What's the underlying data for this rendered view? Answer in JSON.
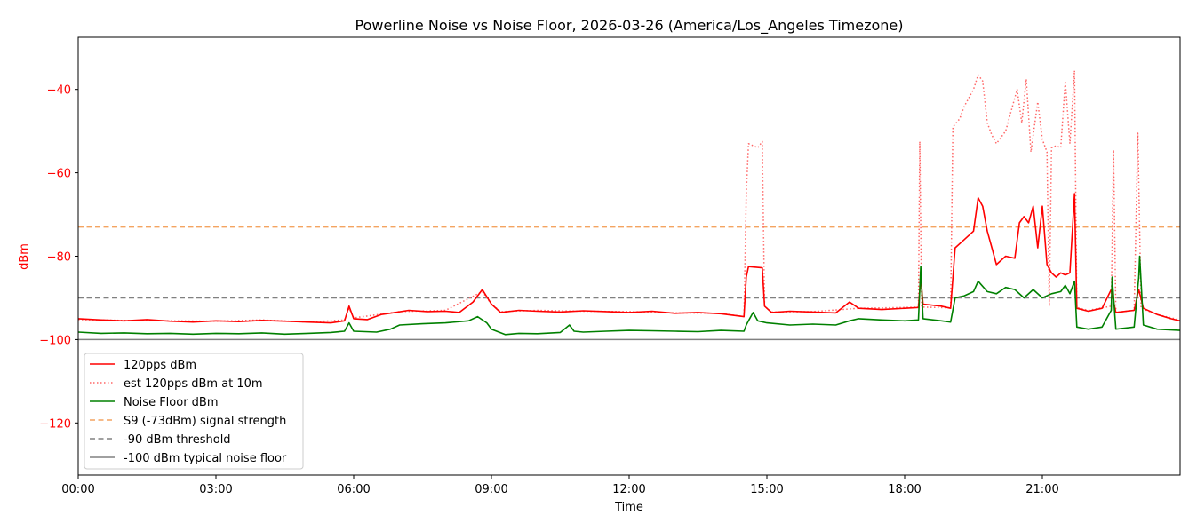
{
  "chart_data": {
    "type": "line",
    "title": "Powerline Noise vs Noise Floor, 2026-03-26 (America/Los_Angeles Timezone)",
    "xlabel": "Time",
    "ylabel": "dBm",
    "xlim_hours": [
      0,
      24
    ],
    "ylim": [
      -132.5,
      -27.5
    ],
    "x_ticks": [
      {
        "h": 0,
        "label": "00:00"
      },
      {
        "h": 3,
        "label": "03:00"
      },
      {
        "h": 6,
        "label": "06:00"
      },
      {
        "h": 9,
        "label": "09:00"
      },
      {
        "h": 12,
        "label": "12:00"
      },
      {
        "h": 15,
        "label": "15:00"
      },
      {
        "h": 18,
        "label": "18:00"
      },
      {
        "h": 21,
        "label": "21:00"
      }
    ],
    "y_ticks": [
      {
        "v": -40,
        "label": "−40"
      },
      {
        "v": -60,
        "label": "−60"
      },
      {
        "v": -80,
        "label": "−80"
      },
      {
        "v": -100,
        "label": "−100"
      },
      {
        "v": -120,
        "label": "−120"
      }
    ],
    "grid": false,
    "legend_position": "lower-left",
    "ylabel_color": "#ff0000",
    "series": [
      {
        "name": "120pps dBm",
        "color": "#ff0000",
        "style": "solid",
        "points": [
          [
            0,
            -95
          ],
          [
            0.5,
            -95.3
          ],
          [
            1,
            -95.5
          ],
          [
            1.5,
            -95.2
          ],
          [
            2,
            -95.6
          ],
          [
            2.5,
            -95.8
          ],
          [
            3,
            -95.5
          ],
          [
            3.5,
            -95.7
          ],
          [
            4,
            -95.4
          ],
          [
            4.5,
            -95.6
          ],
          [
            5,
            -95.8
          ],
          [
            5.5,
            -96
          ],
          [
            5.8,
            -95.5
          ],
          [
            5.9,
            -92
          ],
          [
            6,
            -95
          ],
          [
            6.3,
            -95.2
          ],
          [
            6.6,
            -94
          ],
          [
            6.9,
            -93.5
          ],
          [
            7.2,
            -93
          ],
          [
            7.6,
            -93.3
          ],
          [
            8,
            -93.2
          ],
          [
            8.3,
            -93.5
          ],
          [
            8.6,
            -91
          ],
          [
            8.8,
            -88
          ],
          [
            9,
            -91.5
          ],
          [
            9.2,
            -93.5
          ],
          [
            9.6,
            -93
          ],
          [
            10,
            -93.2
          ],
          [
            10.5,
            -93.4
          ],
          [
            11,
            -93.1
          ],
          [
            11.5,
            -93.3
          ],
          [
            12,
            -93.5
          ],
          [
            12.5,
            -93.2
          ],
          [
            13,
            -93.7
          ],
          [
            13.5,
            -93.5
          ],
          [
            14,
            -93.8
          ],
          [
            14.5,
            -94.5
          ],
          [
            14.55,
            -85
          ],
          [
            14.6,
            -82.5
          ],
          [
            14.9,
            -82.8
          ],
          [
            14.95,
            -92
          ],
          [
            15.1,
            -93.5
          ],
          [
            15.5,
            -93.2
          ],
          [
            16,
            -93.4
          ],
          [
            16.5,
            -93.6
          ],
          [
            16.8,
            -91
          ],
          [
            17,
            -92.5
          ],
          [
            17.5,
            -92.8
          ],
          [
            18,
            -92.5
          ],
          [
            18.3,
            -92.3
          ],
          [
            18.35,
            -85
          ],
          [
            18.4,
            -91.5
          ],
          [
            18.8,
            -92
          ],
          [
            19,
            -92.5
          ],
          [
            19.1,
            -78
          ],
          [
            19.3,
            -76
          ],
          [
            19.5,
            -74
          ],
          [
            19.6,
            -66
          ],
          [
            19.7,
            -68
          ],
          [
            19.8,
            -74
          ],
          [
            19.9,
            -78
          ],
          [
            20,
            -82
          ],
          [
            20.2,
            -80
          ],
          [
            20.4,
            -80.5
          ],
          [
            20.5,
            -72
          ],
          [
            20.6,
            -70.5
          ],
          [
            20.7,
            -72
          ],
          [
            20.8,
            -68
          ],
          [
            20.9,
            -78
          ],
          [
            21,
            -68
          ],
          [
            21.1,
            -82
          ],
          [
            21.2,
            -84
          ],
          [
            21.3,
            -85
          ],
          [
            21.4,
            -84
          ],
          [
            21.5,
            -84.5
          ],
          [
            21.6,
            -84
          ],
          [
            21.7,
            -65
          ],
          [
            21.75,
            -92.5
          ],
          [
            22,
            -93.2
          ],
          [
            22.3,
            -92.5
          ],
          [
            22.5,
            -88
          ],
          [
            22.6,
            -93.5
          ],
          [
            23,
            -93
          ],
          [
            23.1,
            -88
          ],
          [
            23.2,
            -92.5
          ],
          [
            23.5,
            -94
          ],
          [
            23.8,
            -95
          ],
          [
            24,
            -95.5
          ]
        ]
      },
      {
        "name": "est 120pps dBm at 10m",
        "color": "#ff6666",
        "style": "dotted",
        "points": [
          [
            0,
            -95.2
          ],
          [
            1,
            -95.4
          ],
          [
            2,
            -95.5
          ],
          [
            3,
            -95.6
          ],
          [
            4,
            -95.3
          ],
          [
            5,
            -95.8
          ],
          [
            5.8,
            -95.3
          ],
          [
            5.9,
            -92.5
          ],
          [
            6,
            -94.8
          ],
          [
            7,
            -93.3
          ],
          [
            8,
            -93
          ],
          [
            8.8,
            -88.5
          ],
          [
            9,
            -91.5
          ],
          [
            9.2,
            -93.3
          ],
          [
            10,
            -93
          ],
          [
            11,
            -93.2
          ],
          [
            12,
            -93.3
          ],
          [
            13,
            -93.6
          ],
          [
            14,
            -93.7
          ],
          [
            14.5,
            -94.5
          ],
          [
            14.55,
            -65
          ],
          [
            14.6,
            -53
          ],
          [
            14.8,
            -54
          ],
          [
            14.9,
            -52.5
          ],
          [
            14.95,
            -92
          ],
          [
            15.1,
            -93.4
          ],
          [
            16,
            -93.3
          ],
          [
            17,
            -92.5
          ],
          [
            18,
            -92.3
          ],
          [
            18.3,
            -92.2
          ],
          [
            18.33,
            -52.5
          ],
          [
            18.37,
            -92.2
          ],
          [
            19,
            -92.4
          ],
          [
            19.05,
            -49
          ],
          [
            19.2,
            -47
          ],
          [
            19.3,
            -44
          ],
          [
            19.5,
            -40
          ],
          [
            19.6,
            -36.5
          ],
          [
            19.7,
            -38
          ],
          [
            19.8,
            -48
          ],
          [
            19.9,
            -51
          ],
          [
            20,
            -53
          ],
          [
            20.2,
            -50
          ],
          [
            20.35,
            -44
          ],
          [
            20.45,
            -40
          ],
          [
            20.55,
            -48
          ],
          [
            20.65,
            -37.5
          ],
          [
            20.75,
            -55
          ],
          [
            20.9,
            -43
          ],
          [
            21,
            -52
          ],
          [
            21.1,
            -55
          ],
          [
            21.15,
            -92
          ],
          [
            21.2,
            -54
          ],
          [
            21.3,
            -53.5
          ],
          [
            21.4,
            -54
          ],
          [
            21.5,
            -38
          ],
          [
            21.6,
            -53
          ],
          [
            21.7,
            -35.5
          ],
          [
            21.75,
            -92.3
          ],
          [
            22,
            -93
          ],
          [
            22.5,
            -92
          ],
          [
            22.55,
            -54.5
          ],
          [
            22.6,
            -93.5
          ],
          [
            23,
            -93
          ],
          [
            23.08,
            -50.5
          ],
          [
            23.15,
            -92.5
          ],
          [
            23.5,
            -94
          ],
          [
            24,
            -95.3
          ]
        ]
      },
      {
        "name": "Noise Floor dBm",
        "color": "#008000",
        "style": "solid",
        "points": [
          [
            0,
            -98.2
          ],
          [
            0.5,
            -98.5
          ],
          [
            1,
            -98.4
          ],
          [
            1.5,
            -98.6
          ],
          [
            2,
            -98.5
          ],
          [
            2.5,
            -98.7
          ],
          [
            3,
            -98.5
          ],
          [
            3.5,
            -98.6
          ],
          [
            4,
            -98.4
          ],
          [
            4.5,
            -98.7
          ],
          [
            5,
            -98.5
          ],
          [
            5.5,
            -98.3
          ],
          [
            5.8,
            -98
          ],
          [
            5.9,
            -96
          ],
          [
            6,
            -98
          ],
          [
            6.5,
            -98.2
          ],
          [
            6.8,
            -97.5
          ],
          [
            7,
            -96.5
          ],
          [
            7.5,
            -96.2
          ],
          [
            8,
            -96
          ],
          [
            8.5,
            -95.5
          ],
          [
            8.7,
            -94.5
          ],
          [
            8.9,
            -96
          ],
          [
            9,
            -97.5
          ],
          [
            9.3,
            -98.8
          ],
          [
            9.6,
            -98.5
          ],
          [
            10,
            -98.6
          ],
          [
            10.5,
            -98.3
          ],
          [
            10.7,
            -96.5
          ],
          [
            10.8,
            -98
          ],
          [
            11,
            -98.2
          ],
          [
            11.5,
            -98
          ],
          [
            12,
            -97.8
          ],
          [
            12.5,
            -97.9
          ],
          [
            13,
            -98
          ],
          [
            13.5,
            -98.1
          ],
          [
            14,
            -97.8
          ],
          [
            14.5,
            -98
          ],
          [
            14.55,
            -96.5
          ],
          [
            14.6,
            -95.5
          ],
          [
            14.7,
            -93.5
          ],
          [
            14.8,
            -95.5
          ],
          [
            15,
            -96
          ],
          [
            15.5,
            -96.5
          ],
          [
            16,
            -96.3
          ],
          [
            16.5,
            -96.5
          ],
          [
            16.8,
            -95.5
          ],
          [
            17,
            -95
          ],
          [
            17.5,
            -95.3
          ],
          [
            18,
            -95.5
          ],
          [
            18.3,
            -95.3
          ],
          [
            18.35,
            -82.5
          ],
          [
            18.4,
            -95
          ],
          [
            18.8,
            -95.5
          ],
          [
            19,
            -95.8
          ],
          [
            19.1,
            -90
          ],
          [
            19.3,
            -89.5
          ],
          [
            19.5,
            -88.5
          ],
          [
            19.6,
            -86
          ],
          [
            19.8,
            -88.5
          ],
          [
            20,
            -89
          ],
          [
            20.2,
            -87.5
          ],
          [
            20.4,
            -88
          ],
          [
            20.6,
            -90
          ],
          [
            20.8,
            -88
          ],
          [
            21,
            -90
          ],
          [
            21.2,
            -89
          ],
          [
            21.4,
            -88.5
          ],
          [
            21.5,
            -87
          ],
          [
            21.6,
            -89
          ],
          [
            21.7,
            -86
          ],
          [
            21.75,
            -97
          ],
          [
            22,
            -97.5
          ],
          [
            22.3,
            -97
          ],
          [
            22.5,
            -93
          ],
          [
            22.52,
            -85
          ],
          [
            22.6,
            -97.5
          ],
          [
            23,
            -97
          ],
          [
            23.1,
            -85
          ],
          [
            23.12,
            -80
          ],
          [
            23.2,
            -96.5
          ],
          [
            23.5,
            -97.5
          ],
          [
            24,
            -97.8
          ]
        ]
      }
    ],
    "reference_lines": [
      {
        "name": "S9 (-73dBm) signal strength",
        "value": -73,
        "color": "#f4a460",
        "style": "dashed"
      },
      {
        "name": "-90 dBm threshold",
        "value": -90,
        "color": "#808080",
        "style": "dashed"
      },
      {
        "name": "-100 dBm typical noise floor",
        "value": -100,
        "color": "#808080",
        "style": "solid"
      }
    ]
  }
}
